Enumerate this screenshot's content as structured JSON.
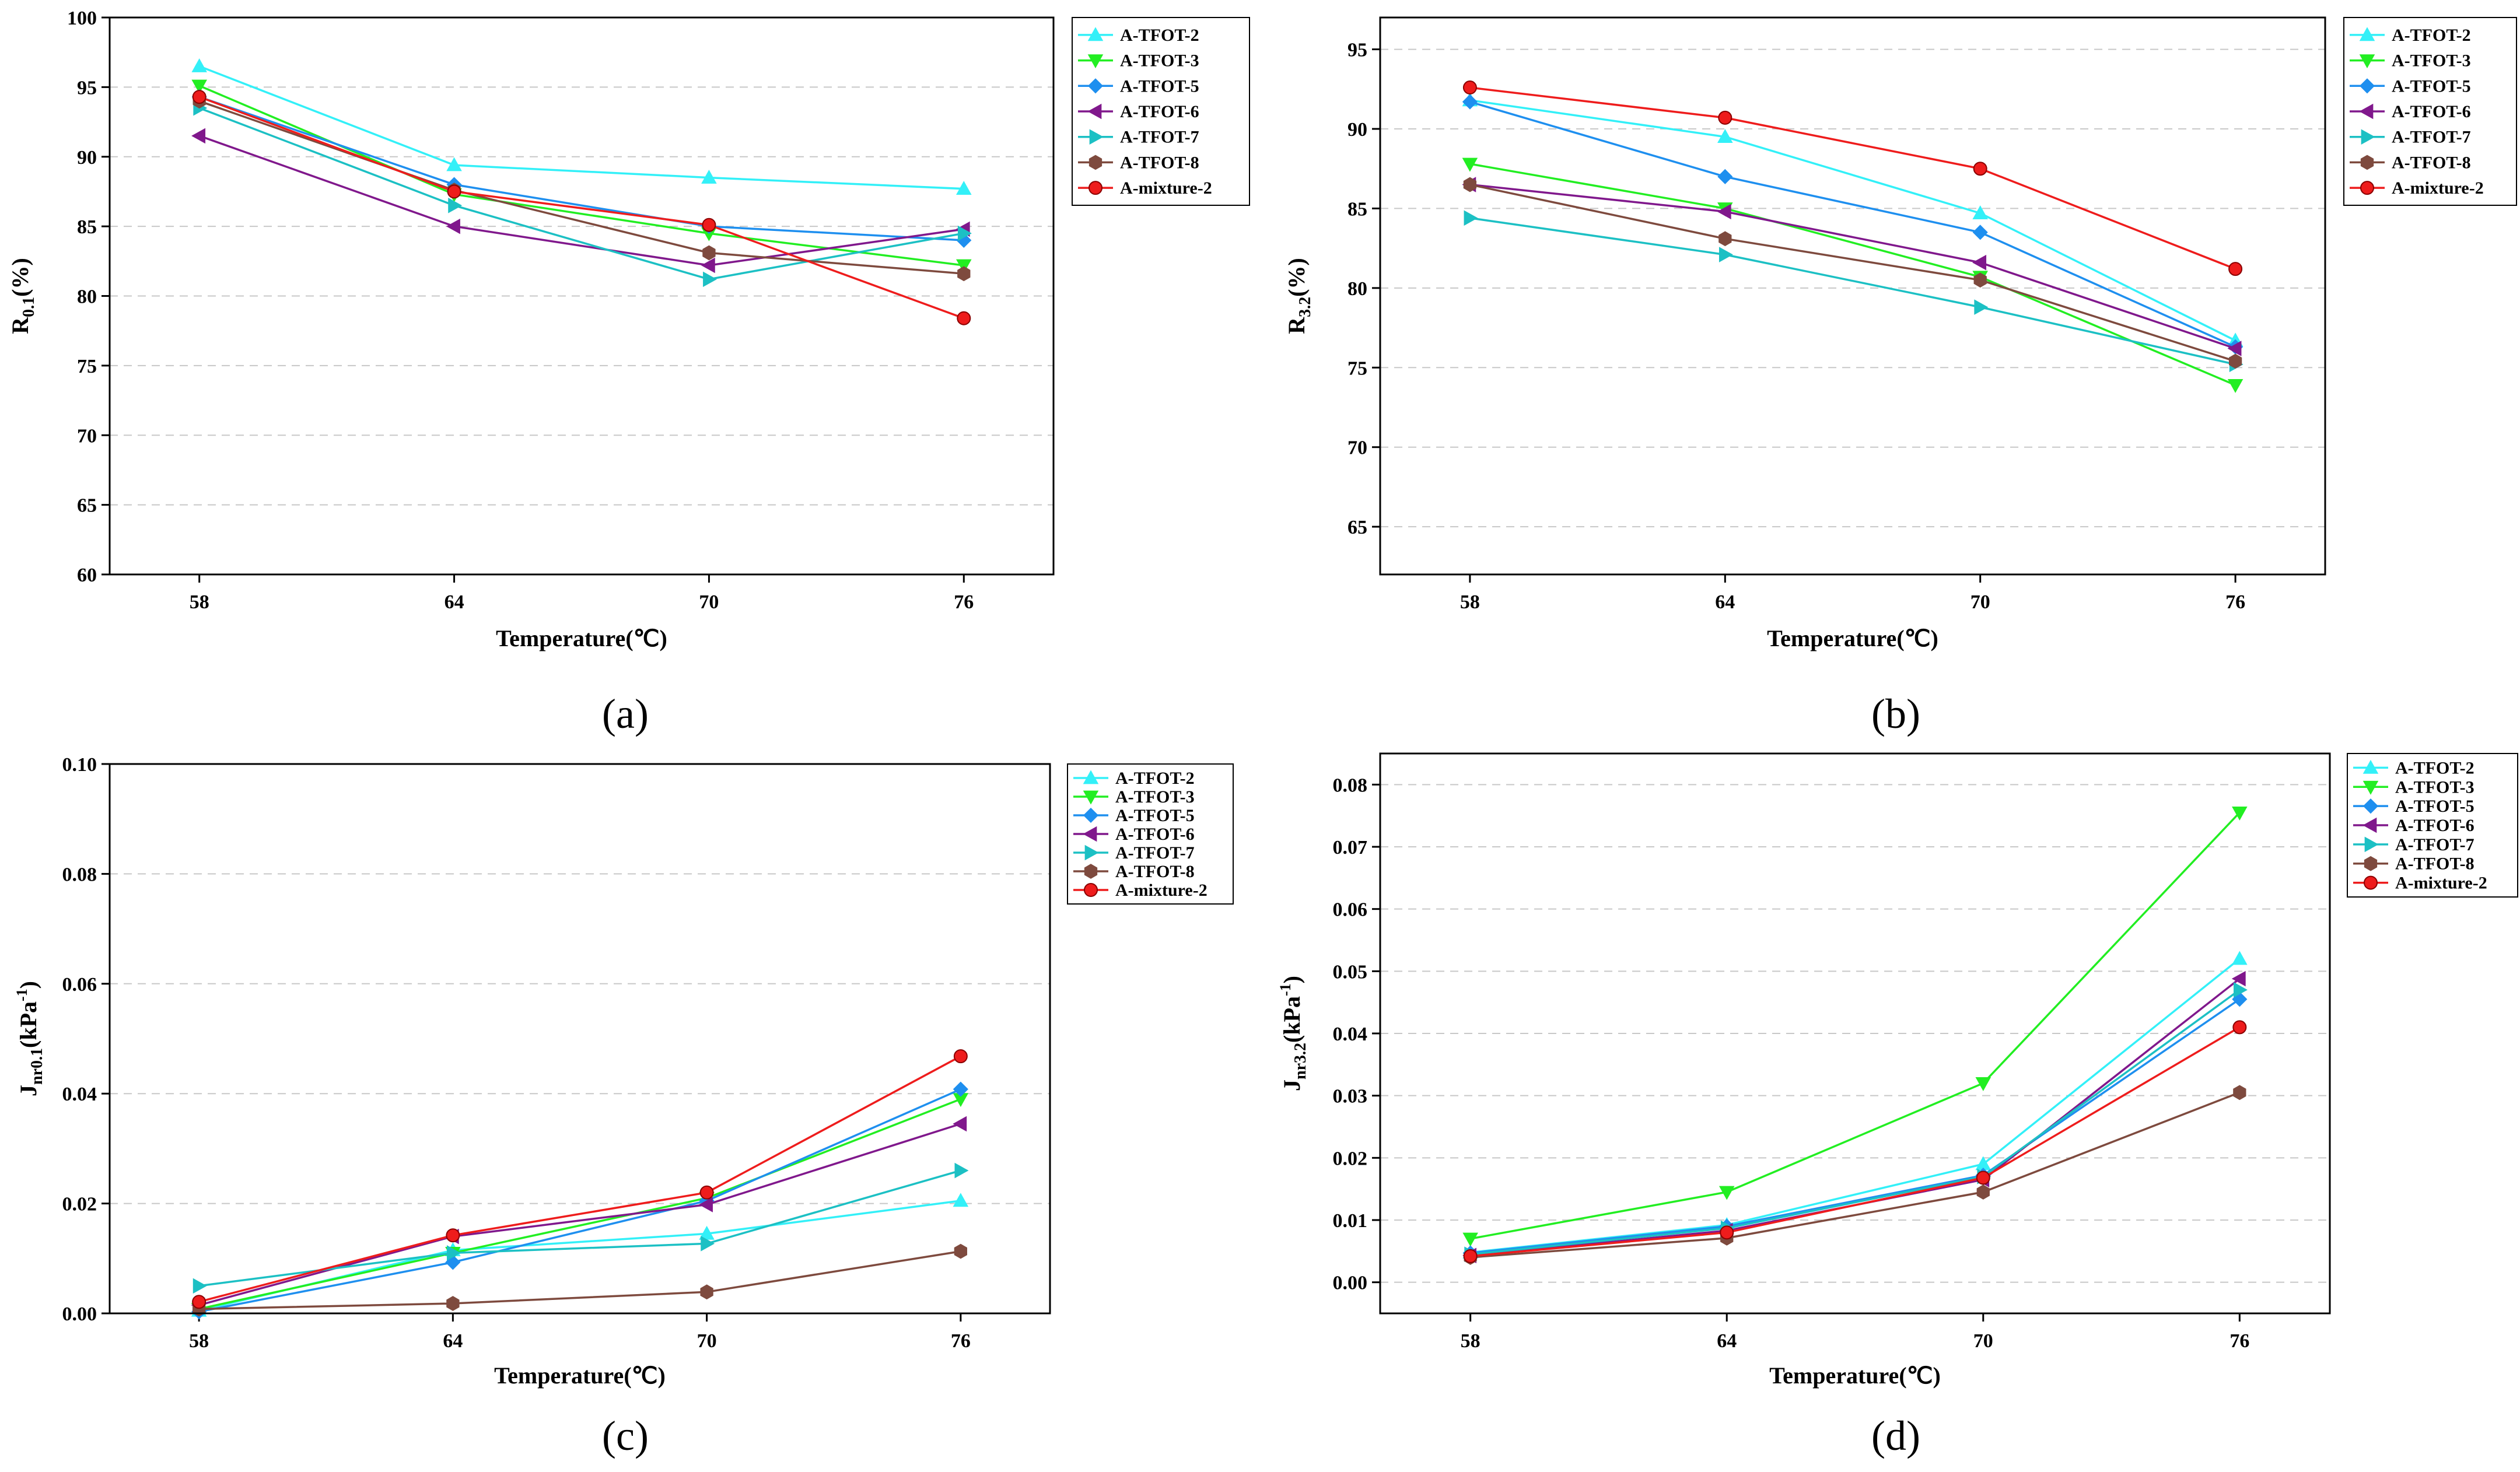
{
  "series_styles": [
    {
      "name": "A-TFOT-2",
      "color": "#33f0f8",
      "marker": "triangle-up"
    },
    {
      "name": "A-TFOT-3",
      "color": "#22ee22",
      "marker": "triangle-down"
    },
    {
      "name": "A-TFOT-5",
      "color": "#1e8fef",
      "marker": "diamond"
    },
    {
      "name": "A-TFOT-6",
      "color": "#80188c",
      "marker": "triangle-left"
    },
    {
      "name": "A-TFOT-7",
      "color": "#1cc0c4",
      "marker": "triangle-right"
    },
    {
      "name": "A-TFOT-8",
      "color": "#7e4a3e",
      "marker": "hexagon"
    },
    {
      "name": "A-mixture-2",
      "color": "#ee1c1c",
      "marker": "circle"
    }
  ],
  "chart_data": [
    {
      "panel": "(a)",
      "type": "line",
      "x": [
        58,
        64,
        70,
        76
      ],
      "xlabel": "Temperature(℃)",
      "ylabel": {
        "base": "R",
        "sub": "0.1",
        "tail": "(%)"
      },
      "ylim": [
        60,
        100
      ],
      "yticks": [
        60,
        65,
        70,
        75,
        80,
        85,
        90,
        95,
        100
      ],
      "ytick_labels": [
        "60",
        "65",
        "70",
        "75",
        "80",
        "85",
        "90",
        "95",
        "100"
      ],
      "legend": "top-right",
      "series": [
        {
          "name": "A-TFOT-2",
          "values": [
            96.5,
            89.4,
            88.5,
            87.7
          ]
        },
        {
          "name": "A-TFOT-3",
          "values": [
            95.1,
            87.3,
            84.5,
            82.2
          ]
        },
        {
          "name": "A-TFOT-5",
          "values": [
            94.3,
            88.0,
            85.0,
            84.0
          ]
        },
        {
          "name": "A-TFOT-6",
          "values": [
            91.5,
            85.0,
            82.2,
            84.8
          ]
        },
        {
          "name": "A-TFOT-7",
          "values": [
            93.5,
            86.5,
            81.2,
            84.5
          ]
        },
        {
          "name": "A-TFOT-8",
          "values": [
            94.0,
            87.6,
            83.1,
            81.6
          ]
        },
        {
          "name": "A-mixture-2",
          "values": [
            94.3,
            87.5,
            85.1,
            78.4
          ]
        }
      ]
    },
    {
      "panel": "(b)",
      "type": "line",
      "x": [
        58,
        64,
        70,
        76
      ],
      "xlabel": "Temperature(℃)",
      "ylabel": {
        "base": "R",
        "sub": "3.2",
        "tail": "(%)"
      },
      "ylim": [
        62,
        97
      ],
      "yticks": [
        65,
        70,
        75,
        80,
        85,
        90,
        95
      ],
      "ytick_labels": [
        "65",
        "70",
        "75",
        "80",
        "85",
        "90",
        "95"
      ],
      "legend": "top-right",
      "series": [
        {
          "name": "A-TFOT-2",
          "values": [
            91.8,
            89.5,
            84.7,
            76.7
          ]
        },
        {
          "name": "A-TFOT-3",
          "values": [
            87.8,
            85.0,
            80.7,
            73.9
          ]
        },
        {
          "name": "A-TFOT-5",
          "values": [
            91.7,
            87.0,
            83.5,
            76.3
          ]
        },
        {
          "name": "A-TFOT-6",
          "values": [
            86.5,
            84.8,
            81.6,
            76.2
          ]
        },
        {
          "name": "A-TFOT-7",
          "values": [
            84.4,
            82.1,
            78.8,
            75.2
          ]
        },
        {
          "name": "A-TFOT-8",
          "values": [
            86.5,
            83.1,
            80.5,
            75.4
          ]
        },
        {
          "name": "A-mixture-2",
          "values": [
            92.6,
            90.7,
            87.5,
            81.2
          ]
        }
      ]
    },
    {
      "panel": "(c)",
      "type": "line",
      "x": [
        58,
        64,
        70,
        76
      ],
      "xlabel": "Temperature(℃)",
      "ylabel": {
        "base": "J",
        "sub": "nr0.1",
        "tail": "(kPa",
        "sup": "-1",
        "close": ")"
      },
      "ylim": [
        0,
        0.1
      ],
      "yticks": [
        0,
        0.02,
        0.04,
        0.06,
        0.08,
        0.1
      ],
      "ytick_labels": [
        "0.00",
        "0.02",
        "0.04",
        "0.06",
        "0.08",
        "0.10"
      ],
      "legend": "top-right",
      "series": [
        {
          "name": "A-TFOT-2",
          "values": [
            0.0005,
            0.0115,
            0.0145,
            0.0205
          ]
        },
        {
          "name": "A-TFOT-3",
          "values": [
            0.0008,
            0.011,
            0.021,
            0.039
          ]
        },
        {
          "name": "A-TFOT-5",
          "values": [
            0.0003,
            0.0093,
            0.0205,
            0.0408
          ]
        },
        {
          "name": "A-TFOT-6",
          "values": [
            0.0015,
            0.014,
            0.0198,
            0.0345
          ]
        },
        {
          "name": "A-TFOT-7",
          "values": [
            0.005,
            0.011,
            0.0127,
            0.026
          ]
        },
        {
          "name": "A-TFOT-8",
          "values": [
            0.0008,
            0.0018,
            0.0039,
            0.0113
          ]
        },
        {
          "name": "A-mixture-2",
          "values": [
            0.0021,
            0.0142,
            0.022,
            0.0468
          ]
        }
      ]
    },
    {
      "panel": "(d)",
      "type": "line",
      "x": [
        58,
        64,
        70,
        76
      ],
      "xlabel": "Temperature(℃)",
      "ylabel": {
        "base": "J",
        "sub": "nr3.2",
        "tail": "(kPa",
        "sup": "-1",
        "close": ")"
      },
      "ylim": [
        -0.005,
        0.085
      ],
      "yticks": [
        0,
        0.01,
        0.02,
        0.03,
        0.04,
        0.05,
        0.06,
        0.07,
        0.08
      ],
      "ytick_labels": [
        "0.00",
        "0.01",
        "0.02",
        "0.03",
        "0.04",
        "0.05",
        "0.06",
        "0.07",
        "0.08"
      ],
      "legend": "top-right",
      "series": [
        {
          "name": "A-TFOT-2",
          "values": [
            0.0048,
            0.0092,
            0.019,
            0.052
          ]
        },
        {
          "name": "A-TFOT-3",
          "values": [
            0.007,
            0.0145,
            0.032,
            0.0755
          ]
        },
        {
          "name": "A-TFOT-5",
          "values": [
            0.0047,
            0.009,
            0.0172,
            0.0455
          ]
        },
        {
          "name": "A-TFOT-6",
          "values": [
            0.0043,
            0.0083,
            0.0165,
            0.0488
          ]
        },
        {
          "name": "A-TFOT-7",
          "values": [
            0.0045,
            0.0087,
            0.017,
            0.047
          ]
        },
        {
          "name": "A-TFOT-8",
          "values": [
            0.004,
            0.0071,
            0.0145,
            0.0305
          ]
        },
        {
          "name": "A-mixture-2",
          "values": [
            0.0042,
            0.008,
            0.0168,
            0.041
          ]
        }
      ]
    }
  ]
}
